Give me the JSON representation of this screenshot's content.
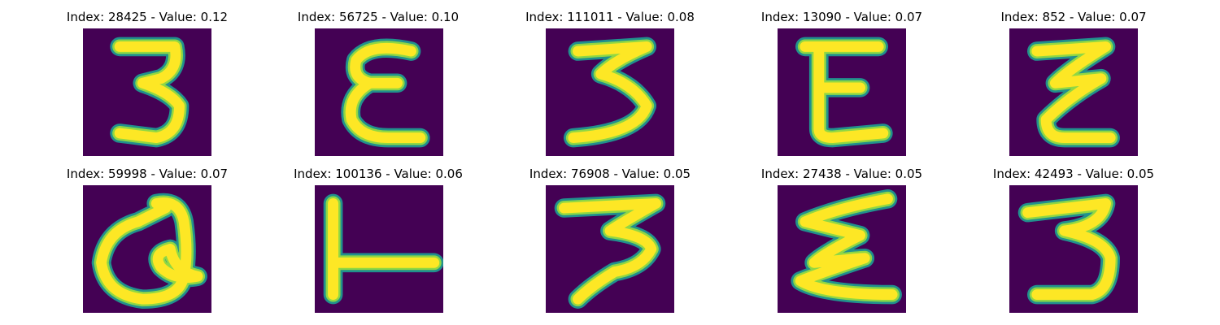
{
  "figure": {
    "panels": [
      {
        "index": "28425",
        "value": "0.12",
        "title": "Index: 28425 - Value: 0.12",
        "glyph": "3"
      },
      {
        "index": "56725",
        "value": "0.10",
        "title": "Index: 56725 - Value: 0.10",
        "glyph": "E"
      },
      {
        "index": "111011",
        "value": "0.08",
        "title": "Index: 111011 - Value: 0.08",
        "glyph": "3"
      },
      {
        "index": "13090",
        "value": "0.07",
        "title": "Index: 13090 - Value: 0.07",
        "glyph": "E"
      },
      {
        "index": "852",
        "value": "0.07",
        "title": "Index: 852 - Value: 0.07",
        "glyph": "Z"
      },
      {
        "index": "59998",
        "value": "0.07",
        "title": "Index: 59998 - Value: 0.07",
        "glyph": "Q"
      },
      {
        "index": "100136",
        "value": "0.06",
        "title": "Index: 100136 - Value: 0.06",
        "glyph": "T"
      },
      {
        "index": "76908",
        "value": "0.05",
        "title": "Index: 76908 - Value: 0.05",
        "glyph": "3"
      },
      {
        "index": "27438",
        "value": "0.05",
        "title": "Index: 27438 - Value: 0.05",
        "glyph": "E"
      },
      {
        "index": "42493",
        "value": "0.05",
        "title": "Index: 42493 - Value: 0.05",
        "glyph": "3"
      }
    ],
    "colors": {
      "background": "#440154",
      "stroke_outer": "#21908d",
      "stroke_mid": "#8fd744",
      "stroke_core": "#fde725"
    }
  }
}
